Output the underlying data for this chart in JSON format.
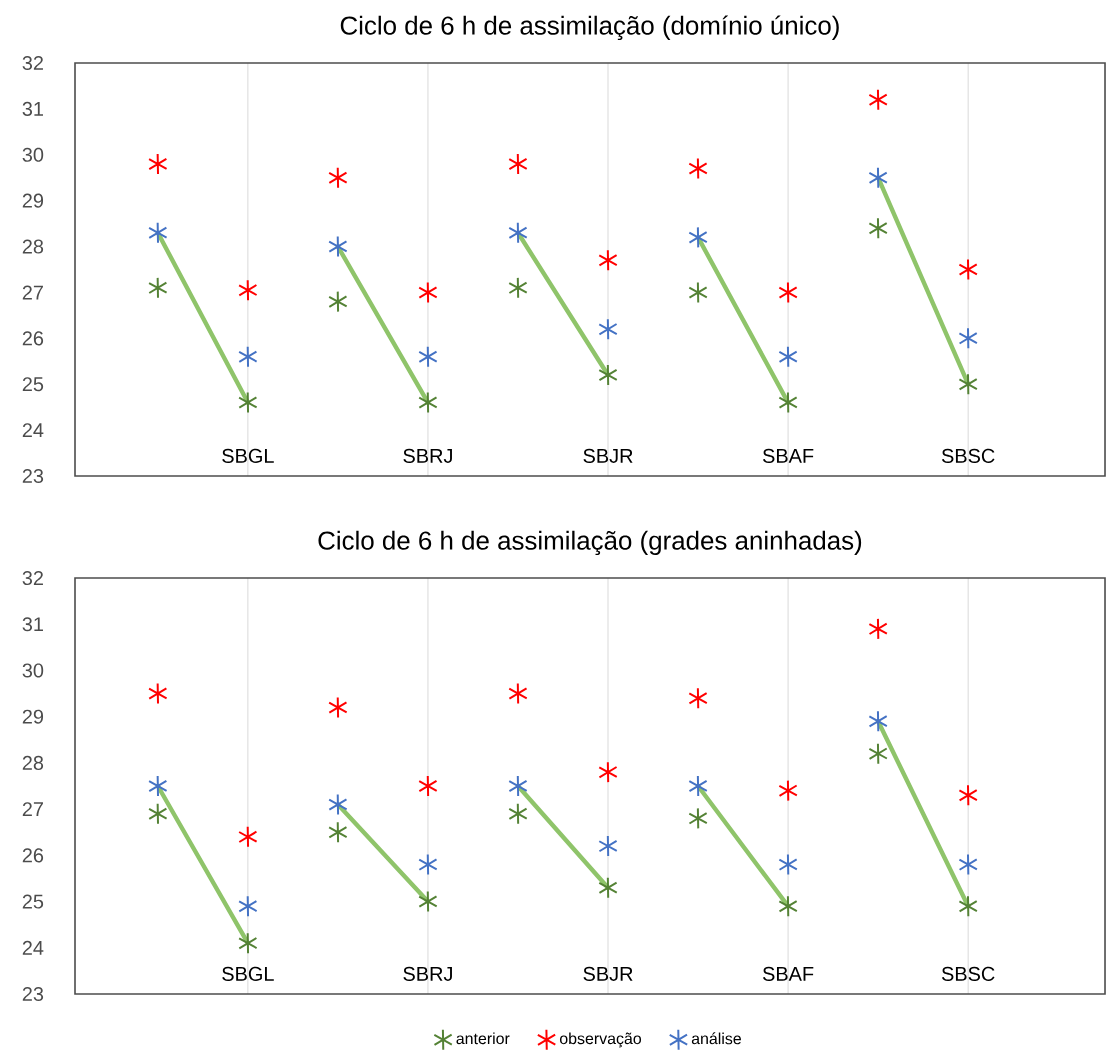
{
  "chart_data": [
    {
      "type": "scatter",
      "title": "Ciclo de 6 h de assimilação (domínio único)",
      "categories": [
        null,
        "SBGL",
        null,
        "SBRJ",
        null,
        "SBJR",
        null,
        "SBAF",
        null,
        "SBSC"
      ],
      "ylim": [
        23,
        32
      ],
      "yticks": [
        23,
        24,
        25,
        26,
        27,
        28,
        29,
        30,
        31,
        32
      ],
      "grid": "x",
      "marker": "cross",
      "legend": "bottom",
      "series": [
        {
          "name": "anterior",
          "color": "#548235",
          "values": [
            27.1,
            24.6,
            26.8,
            24.6,
            27.1,
            25.2,
            27.0,
            24.6,
            28.4,
            25.0
          ]
        },
        {
          "name": "observação",
          "color": "#ff0000",
          "values": [
            29.8,
            27.05,
            29.5,
            27.0,
            29.8,
            27.7,
            29.7,
            27.0,
            31.2,
            27.5
          ]
        },
        {
          "name": "análise",
          "color": "#4472c4",
          "values": [
            28.3,
            25.6,
            28.0,
            25.6,
            28.3,
            26.2,
            28.2,
            25.6,
            29.5,
            26.0
          ]
        },
        {
          "type": "line",
          "marker": "none",
          "color": "#8fc46a",
          "values": [
            28.3,
            24.6,
            null,
            null,
            null,
            null,
            null,
            null,
            null,
            null
          ]
        },
        {
          "type": "line",
          "marker": "none",
          "color": "#8fc46a",
          "values": [
            null,
            null,
            28.0,
            24.6,
            null,
            null,
            null,
            null,
            null,
            null
          ]
        },
        {
          "type": "line",
          "marker": "none",
          "color": "#8fc46a",
          "values": [
            null,
            null,
            null,
            null,
            28.3,
            25.2,
            null,
            null,
            null,
            null
          ]
        },
        {
          "type": "line",
          "marker": "none",
          "color": "#8fc46a",
          "values": [
            null,
            null,
            null,
            null,
            null,
            null,
            28.2,
            24.6,
            null,
            null
          ]
        },
        {
          "type": "line",
          "marker": "none",
          "color": "#8fc46a",
          "values": [
            null,
            null,
            null,
            null,
            null,
            null,
            null,
            null,
            29.5,
            25.0
          ]
        }
      ]
    },
    {
      "type": "scatter",
      "title": "Ciclo de 6 h de assimilação (grades aninhadas)",
      "categories": [
        null,
        "SBGL",
        null,
        "SBRJ",
        null,
        "SBJR",
        null,
        "SBAF",
        null,
        "SBSC"
      ],
      "ylim": [
        23,
        32
      ],
      "yticks": [
        23,
        24,
        25,
        26,
        27,
        28,
        29,
        30,
        31,
        32
      ],
      "grid": "x",
      "marker": "cross",
      "series": [
        {
          "color": "#548235",
          "values": [
            26.9,
            24.1,
            26.5,
            25.0,
            26.9,
            25.3,
            26.8,
            24.9,
            28.2,
            24.9
          ]
        },
        {
          "color": "#ff0000",
          "values": [
            29.5,
            26.4,
            29.2,
            27.5,
            29.5,
            27.8,
            29.4,
            27.4,
            30.9,
            27.3
          ]
        },
        {
          "color": "#4472c4",
          "values": [
            27.5,
            24.9,
            27.1,
            25.8,
            27.5,
            26.2,
            27.5,
            25.8,
            28.9,
            25.8
          ]
        },
        {
          "type": "line",
          "marker": "none",
          "color": "#8fc46a",
          "values": [
            27.5,
            24.1,
            null,
            null,
            null,
            null,
            null,
            null,
            null,
            null
          ]
        },
        {
          "type": "line",
          "marker": "none",
          "color": "#8fc46a",
          "values": [
            null,
            null,
            27.1,
            25.0,
            null,
            null,
            null,
            null,
            null,
            null
          ]
        },
        {
          "type": "line",
          "marker": "none",
          "color": "#8fc46a",
          "values": [
            null,
            null,
            null,
            null,
            27.5,
            25.3,
            null,
            null,
            null,
            null
          ]
        },
        {
          "type": "line",
          "marker": "none",
          "color": "#8fc46a",
          "values": [
            null,
            null,
            null,
            null,
            null,
            null,
            27.5,
            24.9,
            null,
            null
          ]
        },
        {
          "type": "line",
          "marker": "none",
          "color": "#8fc46a",
          "values": [
            null,
            null,
            null,
            null,
            null,
            null,
            null,
            null,
            28.9,
            24.9
          ]
        }
      ]
    }
  ]
}
